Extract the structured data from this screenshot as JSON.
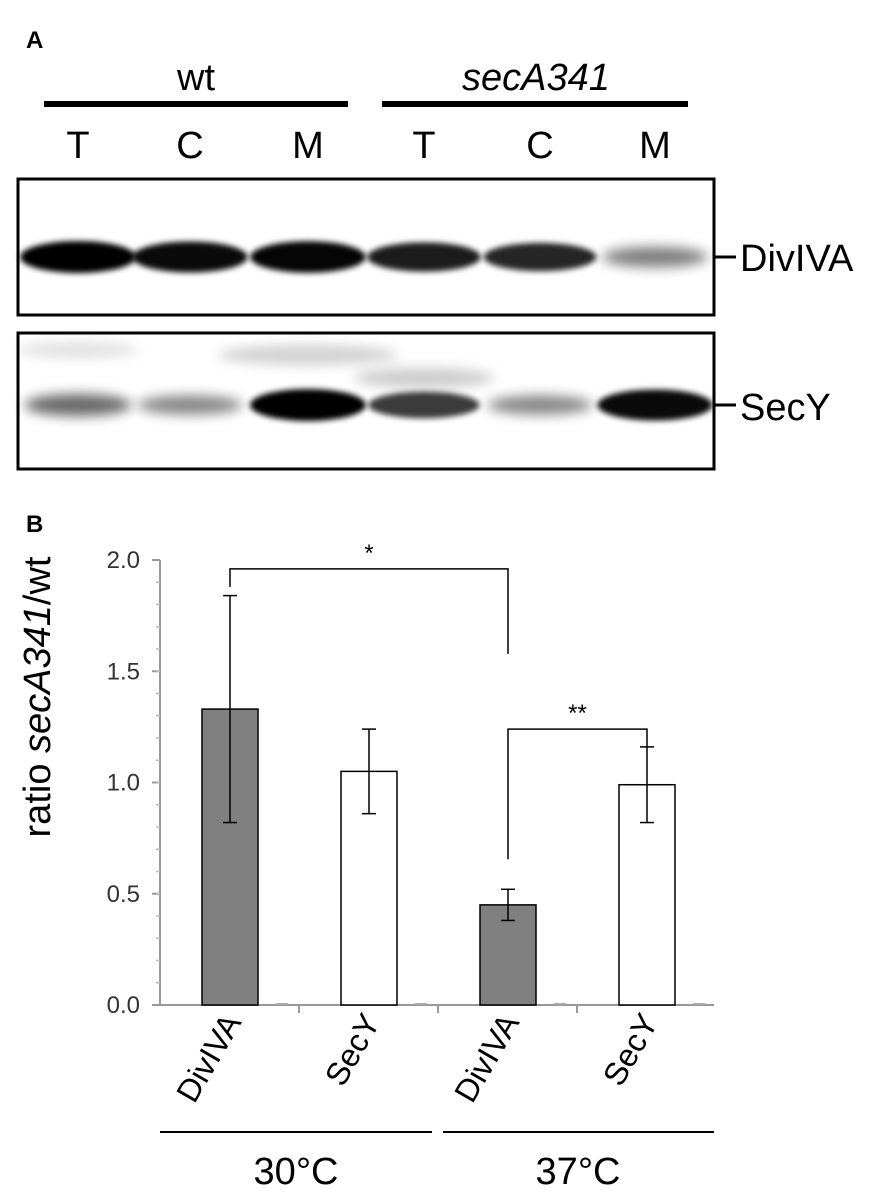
{
  "panel_a": {
    "letter": "A",
    "groups": [
      {
        "label": "wt",
        "italic": false
      },
      {
        "label": "secA341",
        "italic": true
      }
    ],
    "lanes": [
      "T",
      "C",
      "M",
      "T",
      "C",
      "M"
    ],
    "blots": [
      {
        "protein": "DivIVA",
        "band_intensity": [
          1.0,
          0.95,
          0.98,
          0.85,
          0.8,
          0.35
        ]
      },
      {
        "protein": "SecY",
        "band_intensity": [
          0.45,
          0.3,
          1.0,
          0.7,
          0.3,
          0.95
        ]
      }
    ]
  },
  "chart_data": {
    "type": "bar",
    "panel_letter": "B",
    "ylabel_prefix": "ratio ",
    "ylabel_italic": "secA341",
    "ylabel_suffix": "/wt",
    "ylim": [
      0,
      2.0
    ],
    "yticks": [
      "0.0",
      "0.5",
      "1.0",
      "1.5",
      "2.0"
    ],
    "categories": [
      "DivIVA",
      "SecY",
      "DivIVA",
      "SecY"
    ],
    "values": [
      1.33,
      1.05,
      0.45,
      0.99
    ],
    "errors": [
      0.51,
      0.19,
      0.07,
      0.17
    ],
    "bar_fill": [
      "#808080",
      "#ffffff",
      "#808080",
      "#ffffff"
    ],
    "group_labels": [
      "30°C",
      "37°C"
    ],
    "significance": [
      {
        "label": "*",
        "bar_a": 0,
        "bar_b": 2,
        "bracket_y": 1.96
      },
      {
        "label": "**",
        "bar_a": 2,
        "bar_b": 3,
        "bracket_y": 1.24
      }
    ]
  }
}
